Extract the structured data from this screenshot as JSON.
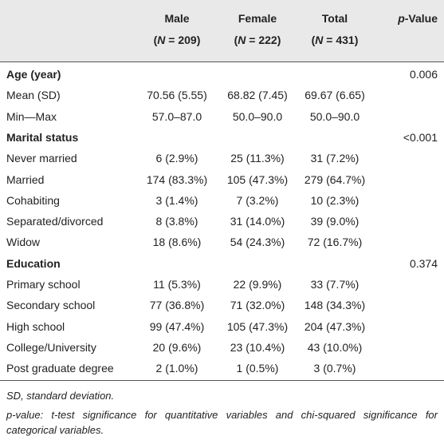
{
  "table": {
    "header": {
      "columns": [
        {
          "line1": "Male",
          "line2": [
            "(",
            "N",
            " = 209)"
          ]
        },
        {
          "line1": "Female",
          "line2": [
            "(",
            "N",
            " = 222)"
          ]
        },
        {
          "line1": "Total",
          "line2": [
            "(",
            "N",
            " = 431)"
          ]
        }
      ],
      "p_header": [
        "p",
        "-Value"
      ]
    },
    "sections": [
      {
        "title": "Age (year)",
        "p_value": "0.006",
        "rows": [
          [
            "Mean (SD)",
            "70.56 (5.55)",
            "68.82 (7.45)",
            "69.67 (6.65)"
          ],
          [
            "Min—Max",
            "57.0–87.0",
            "50.0–90.0",
            "50.0–90.0"
          ]
        ]
      },
      {
        "title": "Marital status",
        "p_value": "<0.001",
        "rows": [
          [
            "Never married",
            "6 (2.9%)",
            "25 (11.3%)",
            "31 (7.2%)"
          ],
          [
            "Married",
            "174 (83.3%)",
            "105 (47.3%)",
            "279 (64.7%)"
          ],
          [
            "Cohabiting",
            "3 (1.4%)",
            "7 (3.2%)",
            "10 (2.3%)"
          ],
          [
            "Separated/divorced",
            "8 (3.8%)",
            "31 (14.0%)",
            "39 (9.0%)"
          ],
          [
            "Widow",
            "18 (8.6%)",
            "54 (24.3%)",
            "72 (16.7%)"
          ]
        ]
      },
      {
        "title": "Education",
        "p_value": "0.374",
        "rows": [
          [
            "Primary school",
            "11 (5.3%)",
            "22 (9.9%)",
            "33 (7.7%)"
          ],
          [
            "Secondary school",
            "77 (36.8%)",
            "71 (32.0%)",
            "148 (34.3%)"
          ],
          [
            "High school",
            "99 (47.4%)",
            "105 (47.3%)",
            "204 (47.3%)"
          ],
          [
            "College/University",
            "20 (9.6%)",
            "23 (10.4%)",
            "43 (10.0%)"
          ],
          [
            "Post graduate degree",
            "2 (1.0%)",
            "1 (0.5%)",
            "3 (0.7%)"
          ]
        ]
      }
    ],
    "footnotes": [
      "SD, standard deviation.",
      "p-value: t-test significance for quantitative variables and chi-squared significance for categorical variables."
    ]
  }
}
